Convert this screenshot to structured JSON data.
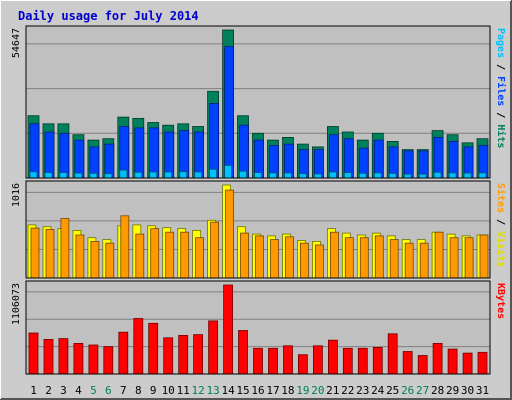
{
  "chart_data": {
    "type": "bar",
    "title": "Daily usage for July 2014",
    "categories": [
      "1",
      "2",
      "3",
      "4",
      "5",
      "6",
      "7",
      "8",
      "9",
      "10",
      "11",
      "12",
      "13",
      "14",
      "15",
      "16",
      "17",
      "18",
      "19",
      "20",
      "21",
      "22",
      "23",
      "24",
      "25",
      "26",
      "27",
      "28",
      "29",
      "30",
      "31"
    ],
    "weekend_days": [
      "5",
      "6",
      "12",
      "13",
      "19",
      "20",
      "26",
      "27"
    ],
    "panels": [
      {
        "id": "top",
        "ymax": 54647,
        "ymax_label": "54647",
        "legend": [
          "Pages",
          "Files",
          "Hits"
        ],
        "series": [
          {
            "name": "Hits",
            "color": "#00805c",
            "values": [
              23000,
              20000,
              20000,
              16000,
              14000,
              14500,
              22500,
              22000,
              20500,
              19500,
              20000,
              19000,
              32000,
              54647,
              23000,
              16500,
              14000,
              15000,
              12500,
              11500,
              19000,
              17000,
              14000,
              16500,
              13500,
              10500,
              10500,
              17500,
              16000,
              13000,
              14500
            ]
          },
          {
            "name": "Files",
            "color": "#0040ff",
            "values": [
              20000,
              17000,
              16500,
              14000,
              11500,
              12500,
              19000,
              18500,
              18500,
              17000,
              17500,
              17000,
              27500,
              48500,
              19500,
              14000,
              12000,
              12500,
              10500,
              10500,
              16000,
              14500,
              11000,
              14000,
              11500,
              10000,
              10000,
              15000,
              13500,
              11500,
              12000
            ]
          },
          {
            "name": "Pages",
            "color": "#00c0ff",
            "values": [
              2300,
              2000,
              2000,
              1800,
              1700,
              1600,
              2900,
              2100,
              2200,
              2200,
              2300,
              2200,
              3200,
              4600,
              2500,
              2000,
              1900,
              1900,
              1600,
              1500,
              2200,
              2000,
              1700,
              1900,
              1700,
              1400,
              1400,
              2100,
              1900,
              1800,
              1900
            ]
          }
        ]
      },
      {
        "id": "mid",
        "ymax": 1016,
        "ymax_label": "1016",
        "legend": [
          "Sites",
          "Visits"
        ],
        "series": [
          {
            "name": "Visits",
            "color": "#ffff00",
            "values": [
              580,
              560,
              540,
              520,
              440,
              420,
              570,
              580,
              570,
              550,
              540,
              520,
              630,
              1016,
              560,
              480,
              460,
              480,
              410,
              400,
              540,
              490,
              470,
              490,
              460,
              420,
              420,
              500,
              480,
              460,
              470
            ]
          },
          {
            "name": "Sites",
            "color": "#ff9900",
            "values": [
              545,
              530,
              650,
              470,
              400,
              380,
              680,
              480,
              540,
              500,
              500,
              440,
              610,
              960,
              490,
              460,
              420,
              450,
              380,
              360,
              500,
              440,
              440,
              460,
              420,
              380,
              380,
              500,
              440,
              440,
              470
            ]
          }
        ]
      },
      {
        "id": "bot",
        "ymax": 1106073,
        "ymax_label": "1106073",
        "legend": [
          "KBytes"
        ],
        "series": [
          {
            "name": "KBytes",
            "color": "#ff0000",
            "values": [
              510000,
              430000,
              440000,
              380000,
              360000,
              340000,
              520000,
              690000,
              630000,
              450000,
              480000,
              490000,
              660000,
              1106073,
              540000,
              320000,
              320000,
              350000,
              240000,
              350000,
              420000,
              320000,
              320000,
              330000,
              500000,
              280000,
              230000,
              380000,
              310000,
              260000,
              270000
            ]
          }
        ]
      }
    ],
    "legend_placement": "right",
    "grid": true
  }
}
